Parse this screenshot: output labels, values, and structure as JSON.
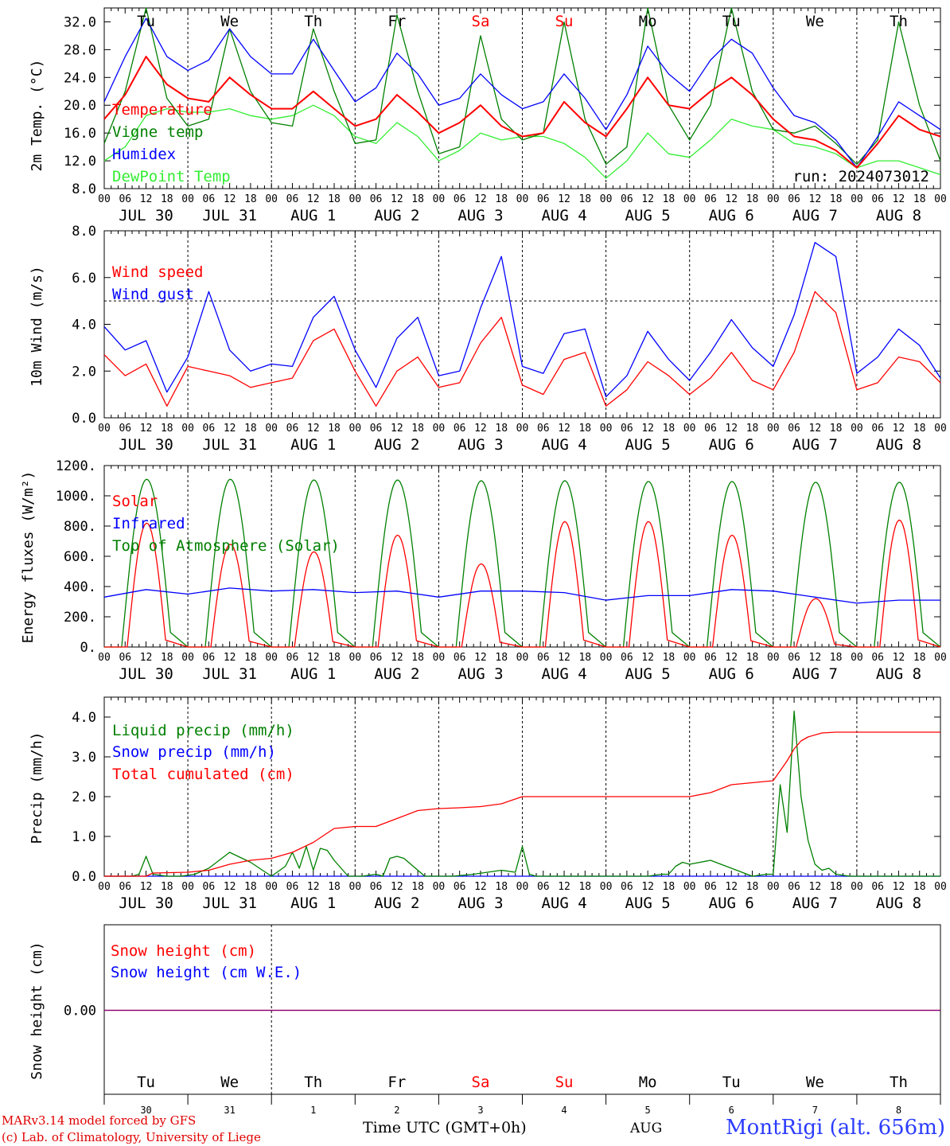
{
  "run_label": "run: 2024073012",
  "station": "MontRigi (alt. 656m)",
  "credits": [
    "MARv3.14 model forced by GFS",
    "(c) Lab. of Climatology, University of Liege"
  ],
  "x_axis_title": "Time UTC (GMT+0h)",
  "month_label": "AUG",
  "hour_ticks": [
    "00",
    "06",
    "12",
    "18"
  ],
  "days": [
    {
      "date": "JUL 30",
      "weekday": "Tu",
      "day_num": "30",
      "weekend": false
    },
    {
      "date": "JUL 31",
      "weekday": "We",
      "day_num": "31",
      "weekend": false
    },
    {
      "date": "AUG  1",
      "weekday": "Th",
      "day_num": "1",
      "weekend": false
    },
    {
      "date": "AUG  2",
      "weekday": "Fr",
      "day_num": "2",
      "weekend": false
    },
    {
      "date": "AUG  3",
      "weekday": "Sa",
      "day_num": "3",
      "weekend": true
    },
    {
      "date": "AUG  4",
      "weekday": "Su",
      "day_num": "4",
      "weekend": true
    },
    {
      "date": "AUG  5",
      "weekday": "Mo",
      "day_num": "5",
      "weekend": false
    },
    {
      "date": "AUG  6",
      "weekday": "Tu",
      "day_num": "6",
      "weekend": false
    },
    {
      "date": "AUG  7",
      "weekday": "We",
      "day_num": "7",
      "weekend": false
    },
    {
      "date": "AUG  8",
      "weekday": "Th",
      "day_num": "8",
      "weekend": false
    }
  ],
  "colors": {
    "red": "#ff0000",
    "green": "#008000",
    "blue": "#0000ff",
    "light_green": "#33ee33",
    "purple": "#800080",
    "weekend": "#ff0000"
  },
  "chart_data": [
    {
      "type": "line",
      "id": "temperature",
      "ylabel": "2m Temp. (°C)",
      "ylim": [
        8,
        34
      ],
      "yticks": [
        "8.0",
        "12.0",
        "16.0",
        "20.0",
        "24.0",
        "28.0",
        "32.0"
      ],
      "x_unit": "hours since JUL 30 00 UTC",
      "x": [
        0,
        6,
        12,
        18,
        24,
        30,
        36,
        42,
        48,
        54,
        60,
        66,
        72,
        78,
        84,
        90,
        96,
        102,
        108,
        114,
        120,
        126,
        132,
        138,
        144,
        150,
        156,
        162,
        168,
        174,
        180,
        186,
        192,
        198,
        204,
        210,
        216,
        222,
        228,
        234,
        240
      ],
      "series": [
        {
          "name": "Temperature",
          "color": "#ff0000",
          "values": [
            18.0,
            21.5,
            27.0,
            23.0,
            21.0,
            20.5,
            24.0,
            21.5,
            19.5,
            19.5,
            22.0,
            19.5,
            17.0,
            18.0,
            21.5,
            19.0,
            16.0,
            17.5,
            20.0,
            17.0,
            15.5,
            16.0,
            20.5,
            17.5,
            15.5,
            19.5,
            24.0,
            20.0,
            19.5,
            22.0,
            24.0,
            21.5,
            18.0,
            15.5,
            15.0,
            13.5,
            11.0,
            14.5,
            18.5,
            16.5,
            15.5
          ]
        },
        {
          "name": "Vigne temp",
          "color": "#008000",
          "values": [
            14.5,
            22.0,
            34.0,
            21.0,
            17.0,
            18.0,
            31.0,
            22.0,
            17.5,
            17.0,
            31.0,
            22.0,
            14.5,
            15.0,
            33.0,
            22.0,
            13.0,
            14.0,
            30.0,
            18.0,
            15.0,
            16.0,
            32.0,
            18.0,
            11.5,
            14.0,
            34.0,
            20.0,
            15.0,
            20.0,
            34.0,
            22.0,
            16.5,
            16.0,
            17.0,
            14.5,
            11.5,
            15.0,
            32.0,
            20.0,
            12.0
          ]
        },
        {
          "name": "Humidex",
          "color": "#0000ff",
          "values": [
            20.5,
            27.0,
            32.5,
            27.0,
            25.0,
            26.5,
            31.0,
            27.0,
            24.5,
            24.5,
            29.5,
            25.0,
            20.5,
            22.5,
            27.5,
            24.5,
            20.0,
            21.0,
            24.5,
            21.5,
            19.5,
            20.5,
            24.5,
            21.0,
            16.5,
            21.5,
            28.5,
            24.5,
            22.0,
            26.5,
            29.5,
            27.5,
            22.5,
            18.5,
            17.5,
            15.0,
            11.0,
            15.5,
            20.5,
            18.5,
            16.5
          ]
        },
        {
          "name": "DewPoint Temp",
          "color": "#33ee33",
          "values": [
            12.0,
            14.0,
            18.5,
            19.5,
            19.0,
            19.0,
            19.5,
            18.5,
            18.0,
            18.5,
            20.0,
            18.5,
            15.5,
            14.5,
            17.5,
            15.5,
            12.0,
            13.5,
            16.0,
            15.0,
            15.5,
            15.5,
            14.5,
            12.5,
            9.5,
            12.0,
            16.0,
            13.0,
            12.5,
            15.0,
            18.0,
            17.0,
            16.5,
            14.5,
            14.0,
            13.0,
            11.0,
            12.0,
            12.0,
            11.0,
            10.0
          ]
        }
      ]
    },
    {
      "type": "line",
      "id": "wind",
      "ylabel": "10m Wind (m/s)",
      "ylim": [
        0,
        8
      ],
      "yticks": [
        "0.0",
        "2.0",
        "4.0",
        "6.0",
        "8.0"
      ],
      "reference_line": 5,
      "x_unit": "hours since JUL 30 00 UTC",
      "x": [
        0,
        6,
        12,
        18,
        24,
        30,
        36,
        42,
        48,
        54,
        60,
        66,
        72,
        78,
        84,
        90,
        96,
        102,
        108,
        114,
        120,
        126,
        132,
        138,
        144,
        150,
        156,
        162,
        168,
        174,
        180,
        186,
        192,
        198,
        204,
        210,
        216,
        222,
        228,
        234,
        240
      ],
      "series": [
        {
          "name": "Wind speed",
          "color": "#ff0000",
          "values": [
            2.7,
            1.8,
            2.3,
            0.5,
            2.2,
            2.0,
            1.8,
            1.3,
            1.5,
            1.7,
            3.3,
            3.8,
            2.0,
            0.5,
            2.0,
            2.6,
            1.3,
            1.5,
            3.2,
            4.3,
            1.4,
            1.0,
            2.5,
            2.8,
            0.5,
            1.2,
            2.4,
            1.8,
            1.0,
            1.7,
            2.8,
            1.6,
            1.2,
            2.8,
            5.4,
            4.5,
            1.2,
            1.5,
            2.6,
            2.4,
            1.5
          ]
        },
        {
          "name": "Wind gust",
          "color": "#0000ff",
          "values": [
            3.9,
            2.9,
            3.3,
            1.1,
            2.6,
            5.4,
            2.9,
            2.0,
            2.3,
            2.2,
            4.3,
            5.2,
            2.9,
            1.3,
            3.4,
            4.3,
            1.8,
            2.0,
            4.7,
            6.9,
            2.2,
            1.9,
            3.6,
            3.8,
            0.9,
            1.8,
            3.7,
            2.5,
            1.6,
            2.8,
            4.2,
            3.0,
            2.2,
            4.4,
            7.5,
            6.9,
            1.9,
            2.6,
            3.8,
            3.1,
            1.7
          ]
        }
      ]
    },
    {
      "type": "line",
      "id": "energy",
      "ylabel": "Energy fluxes (W/m²)",
      "ylim": [
        0,
        1200
      ],
      "yticks": [
        "0.",
        "200.",
        "400.",
        "600.",
        "800.",
        "1000.",
        "1200."
      ],
      "x_unit": "hours since JUL 30 00 UTC",
      "series": [
        {
          "name": "Solar",
          "color": "#ff0000",
          "daily_peak": [
            820,
            680,
            630,
            740,
            550,
            830,
            830,
            740,
            320,
            840
          ]
        },
        {
          "name": "Infrared",
          "color": "#0000ff",
          "x": [
            0,
            12,
            24,
            36,
            48,
            60,
            72,
            84,
            96,
            108,
            120,
            132,
            144,
            156,
            168,
            180,
            192,
            204,
            216,
            228,
            240
          ],
          "values": [
            330,
            380,
            350,
            390,
            370,
            380,
            360,
            370,
            330,
            370,
            370,
            360,
            310,
            340,
            340,
            380,
            370,
            330,
            290,
            310,
            310
          ]
        },
        {
          "name": "Top of Atmosphere (Solar)",
          "color": "#008000",
          "daily_peak": [
            1110,
            1110,
            1105,
            1105,
            1100,
            1100,
            1095,
            1095,
            1090,
            1090
          ]
        }
      ]
    },
    {
      "type": "line",
      "id": "precip",
      "ylabel": "Precip (mm/h)",
      "ylim": [
        0,
        4.5
      ],
      "yticks": [
        "0.0",
        "1.0",
        "2.0",
        "3.0",
        "4.0"
      ],
      "x_unit": "hours since JUL 30 00 UTC",
      "series": [
        {
          "name": "Liquid precip (mm/h)",
          "color": "#008000",
          "x": [
            0,
            8,
            10,
            12,
            14,
            18,
            22,
            26,
            30,
            36,
            42,
            48,
            52,
            54,
            56,
            58,
            60,
            62,
            64,
            66,
            70,
            74,
            78,
            80,
            82,
            84,
            86,
            88,
            92,
            96,
            100,
            106,
            110,
            114,
            118,
            120,
            122,
            124,
            130,
            140,
            150,
            156,
            160,
            162,
            164,
            166,
            168,
            174,
            180,
            186,
            190,
            192,
            194,
            196,
            198,
            200,
            202,
            204,
            206,
            208,
            210,
            214,
            216,
            240
          ],
          "values": [
            0,
            0,
            0.05,
            0.5,
            0.05,
            0,
            0,
            0.05,
            0.2,
            0.6,
            0.35,
            0,
            0.25,
            0.6,
            0.2,
            0.75,
            0.15,
            0.7,
            0.65,
            0.4,
            0,
            0,
            0.05,
            0,
            0.45,
            0.5,
            0.45,
            0.3,
            0,
            0,
            0,
            0.05,
            0.1,
            0.15,
            0.1,
            0.75,
            0.05,
            0,
            0,
            0,
            0,
            0,
            0.05,
            0.05,
            0.25,
            0.35,
            0.3,
            0.4,
            0.2,
            0,
            0.05,
            0.05,
            2.3,
            1.1,
            4.15,
            2.0,
            0.9,
            0.3,
            0.15,
            0.2,
            0.05,
            0,
            0,
            0
          ]
        },
        {
          "name": "Snow precip (mm/h)",
          "color": "#0000ff",
          "x": [
            0,
            240
          ],
          "values": [
            0,
            0
          ]
        },
        {
          "name": "Total cumulated (cm)",
          "color": "#ff0000",
          "x": [
            0,
            12,
            14,
            24,
            30,
            36,
            42,
            48,
            54,
            60,
            66,
            72,
            78,
            84,
            90,
            96,
            102,
            108,
            114,
            120,
            132,
            156,
            168,
            174,
            180,
            186,
            192,
            196,
            198,
            200,
            202,
            206,
            210,
            240
          ],
          "values": [
            0,
            0,
            0.08,
            0.1,
            0.15,
            0.3,
            0.4,
            0.45,
            0.6,
            0.85,
            1.2,
            1.25,
            1.25,
            1.45,
            1.65,
            1.7,
            1.72,
            1.75,
            1.82,
            2.0,
            2.0,
            2.0,
            2.0,
            2.1,
            2.3,
            2.35,
            2.4,
            2.9,
            3.2,
            3.4,
            3.5,
            3.6,
            3.62,
            3.62
          ]
        }
      ]
    },
    {
      "type": "line",
      "id": "snow",
      "ylabel": "Snow height (cm)",
      "yticks": [
        "0.00"
      ],
      "x_unit": "hours since JUL 30 00 UTC",
      "series": [
        {
          "name": "Snow height (cm)",
          "color": "#ff0000",
          "x": [
            0,
            240
          ],
          "values": [
            0,
            0
          ]
        },
        {
          "name": "Snow height (cm W.E.)",
          "color": "#0000ff",
          "x": [
            0,
            240
          ],
          "values": [
            0,
            0
          ]
        }
      ]
    }
  ]
}
